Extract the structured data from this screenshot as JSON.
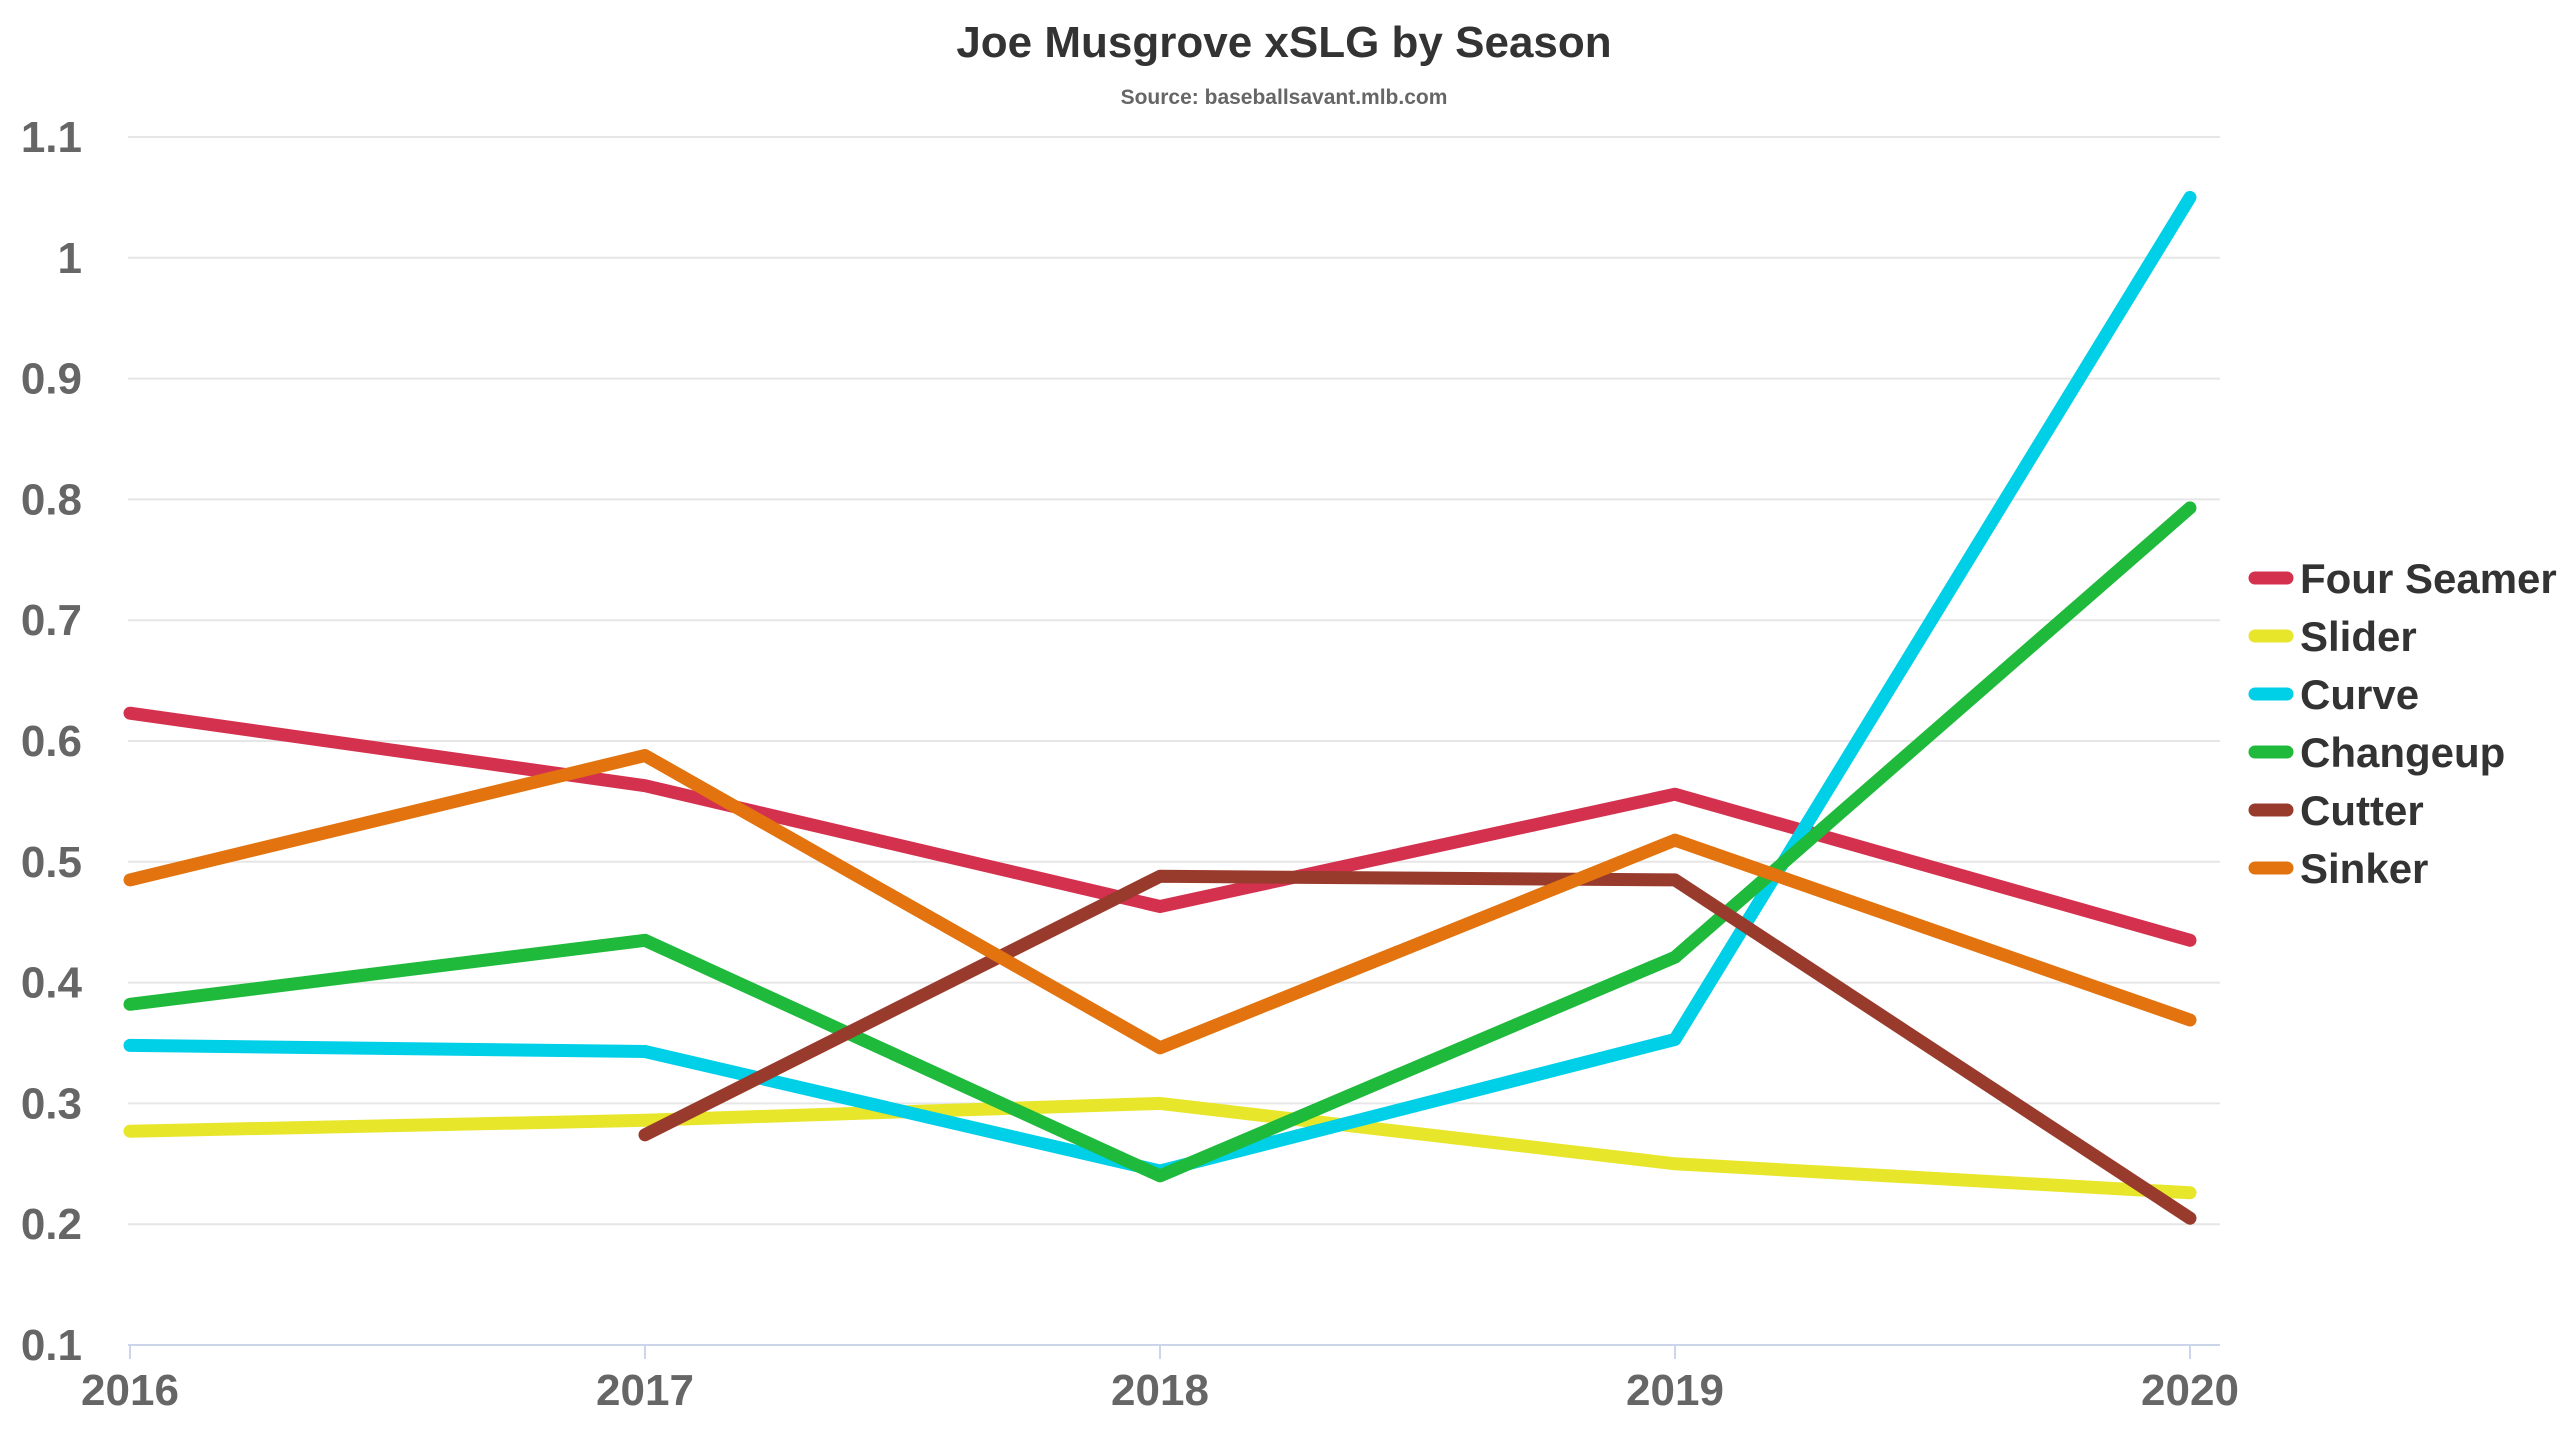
{
  "chart_data": {
    "type": "line",
    "title": "Joe Musgrove xSLG by Season",
    "subtitle": "Source: baseballsavant.mlb.com",
    "xlabel": "",
    "ylabel": "",
    "x": [
      "2016",
      "2017",
      "2018",
      "2019",
      "2020"
    ],
    "ylim": [
      0.1,
      1.1
    ],
    "yticks": [
      "0.1",
      "0.2",
      "0.3",
      "0.4",
      "0.5",
      "0.6",
      "0.7",
      "0.8",
      "0.9",
      "1",
      "1.1"
    ],
    "grid": true,
    "legend_position": "right",
    "series": [
      {
        "name": "Four Seamer",
        "color": "#d4314f",
        "values": [
          0.623,
          0.563,
          0.463,
          0.556,
          0.435
        ]
      },
      {
        "name": "Slider",
        "color": "#e8e62a",
        "values": [
          0.277,
          0.286,
          0.3,
          0.25,
          0.226
        ]
      },
      {
        "name": "Curve",
        "color": "#00cfe8",
        "values": [
          0.348,
          0.343,
          0.244,
          0.353,
          1.05
        ]
      },
      {
        "name": "Changeup",
        "color": "#1fba3c",
        "values": [
          0.382,
          0.435,
          0.24,
          0.421,
          0.793
        ]
      },
      {
        "name": "Cutter",
        "color": "#993b2c",
        "values": [
          null,
          0.274,
          0.488,
          0.485,
          0.205
        ]
      },
      {
        "name": "Sinker",
        "color": "#e2730e",
        "values": [
          0.485,
          0.588,
          0.346,
          0.518,
          0.369
        ]
      }
    ]
  }
}
